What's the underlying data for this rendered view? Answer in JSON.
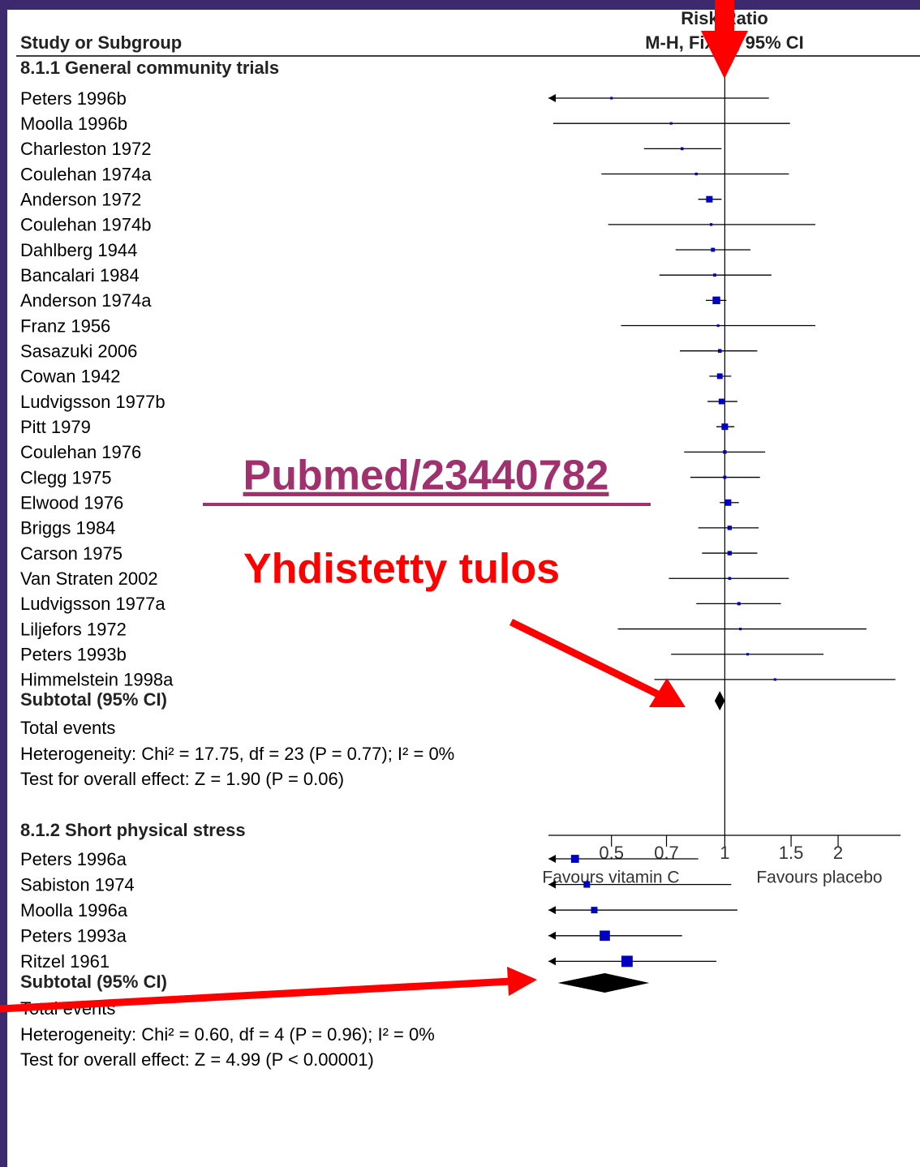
{
  "chart_data": {
    "type": "forest",
    "study_header": "Study or Subgroup",
    "effect_header": "Risk Ratio",
    "effect_method": "M-H, Fixed, 95% CI",
    "log_scale": true,
    "xlim": [
      0.34,
      2.93
    ],
    "xticks": [
      0.5,
      0.7,
      1,
      1.5,
      2
    ],
    "favours_left": "Favours vitamin C",
    "favours_right": "Favours placebo",
    "point_color": "#0000c0",
    "groups": [
      {
        "name": "8.1.1 General community trials",
        "studies": [
          {
            "name": "Peters 1996b",
            "rr": 0.5,
            "lower": 0.3,
            "upper": 1.31,
            "weight": 0.6
          },
          {
            "name": "Moolla 1996b",
            "rr": 0.72,
            "lower": 0.35,
            "upper": 1.49,
            "weight": 0.6
          },
          {
            "name": "Charleston 1972",
            "rr": 0.77,
            "lower": 0.61,
            "upper": 0.98,
            "weight": 0.8
          },
          {
            "name": "Coulehan 1974a",
            "rr": 0.84,
            "lower": 0.47,
            "upper": 1.48,
            "weight": 0.7
          },
          {
            "name": "Anderson 1972",
            "rr": 0.91,
            "lower": 0.85,
            "upper": 0.98,
            "weight": 4
          },
          {
            "name": "Coulehan 1974b",
            "rr": 0.92,
            "lower": 0.49,
            "upper": 1.74,
            "weight": 0.7
          },
          {
            "name": "Dahlberg 1944",
            "rr": 0.93,
            "lower": 0.74,
            "upper": 1.17,
            "weight": 1.5
          },
          {
            "name": "Bancalari 1984",
            "rr": 0.94,
            "lower": 0.67,
            "upper": 1.33,
            "weight": 0.9
          },
          {
            "name": "Anderson 1974a",
            "rr": 0.95,
            "lower": 0.89,
            "upper": 1.01,
            "weight": 5.5
          },
          {
            "name": "Franz  1956",
            "rr": 0.96,
            "lower": 0.53,
            "upper": 1.74,
            "weight": 0.6
          },
          {
            "name": "Sasazuki 2006",
            "rr": 0.97,
            "lower": 0.76,
            "upper": 1.22,
            "weight": 1.3
          },
          {
            "name": "Cowan 1942",
            "rr": 0.97,
            "lower": 0.91,
            "upper": 1.04,
            "weight": 3
          },
          {
            "name": "Ludvigsson 1977b",
            "rr": 0.98,
            "lower": 0.9,
            "upper": 1.08,
            "weight": 3
          },
          {
            "name": "Pitt 1979",
            "rr": 1.0,
            "lower": 0.95,
            "upper": 1.06,
            "weight": 4
          },
          {
            "name": "Coulehan 1976",
            "rr": 1.0,
            "lower": 0.78,
            "upper": 1.28,
            "weight": 1.2
          },
          {
            "name": "Clegg 1975",
            "rr": 1.0,
            "lower": 0.81,
            "upper": 1.24,
            "weight": 1
          },
          {
            "name": "Elwood 1976",
            "rr": 1.02,
            "lower": 0.97,
            "upper": 1.09,
            "weight": 4
          },
          {
            "name": "Briggs 1984",
            "rr": 1.03,
            "lower": 0.85,
            "upper": 1.23,
            "weight": 1.8
          },
          {
            "name": "Carson 1975",
            "rr": 1.03,
            "lower": 0.87,
            "upper": 1.22,
            "weight": 1.8
          },
          {
            "name": "Van Straten 2002",
            "rr": 1.03,
            "lower": 0.71,
            "upper": 1.48,
            "weight": 0.8
          },
          {
            "name": "Ludvigsson 1977a",
            "rr": 1.09,
            "lower": 0.84,
            "upper": 1.41,
            "weight": 1
          },
          {
            "name": "Liljefors 1972",
            "rr": 1.1,
            "lower": 0.52,
            "upper": 2.38,
            "weight": 0.6
          },
          {
            "name": "Peters 1993b",
            "rr": 1.15,
            "lower": 0.72,
            "upper": 1.83,
            "weight": 0.6
          },
          {
            "name": "Himmelstein 1998a",
            "rr": 1.36,
            "lower": 0.65,
            "upper": 2.84,
            "weight": 0.6
          }
        ],
        "subtotal": {
          "label": "Subtotal (95% CI)",
          "rr": 0.97,
          "lower": 0.94,
          "upper": 1.0
        },
        "total_events": "Total events",
        "heterogeneity": "Heterogeneity: Chi² = 17.75, df = 23 (P = 0.77); I² = 0%",
        "overall_effect": "Test for overall effect: Z = 1.90 (P = 0.06)"
      },
      {
        "name": "8.1.2 Short physical stress",
        "studies": [
          {
            "name": "Peters 1996a",
            "rr": 0.4,
            "lower": 0.3,
            "upper": 0.85,
            "weight": 6
          },
          {
            "name": "Sabiston 1974",
            "rr": 0.43,
            "lower": 0.3,
            "upper": 1.04,
            "weight": 4
          },
          {
            "name": "Moolla 1996a",
            "rr": 0.45,
            "lower": 0.3,
            "upper": 1.08,
            "weight": 4
          },
          {
            "name": "Peters 1993a",
            "rr": 0.48,
            "lower": 0.3,
            "upper": 0.77,
            "weight": 10
          },
          {
            "name": "Ritzel 1961",
            "rr": 0.55,
            "lower": 0.3,
            "upper": 0.95,
            "weight": 12
          }
        ],
        "subtotal": {
          "label": "Subtotal (95% CI)",
          "rr": 0.48,
          "lower": 0.36,
          "upper": 0.63
        },
        "total_events": "Total events",
        "heterogeneity": "Heterogeneity: Chi² = 0.60, df = 4 (P = 0.96); I² = 0%",
        "overall_effect": "Test for overall effect: Z = 4.99 (P < 0.00001)"
      }
    ],
    "annotations": {
      "source": "Pubmed/23440782",
      "note": "Yhdistetty tulos"
    }
  }
}
